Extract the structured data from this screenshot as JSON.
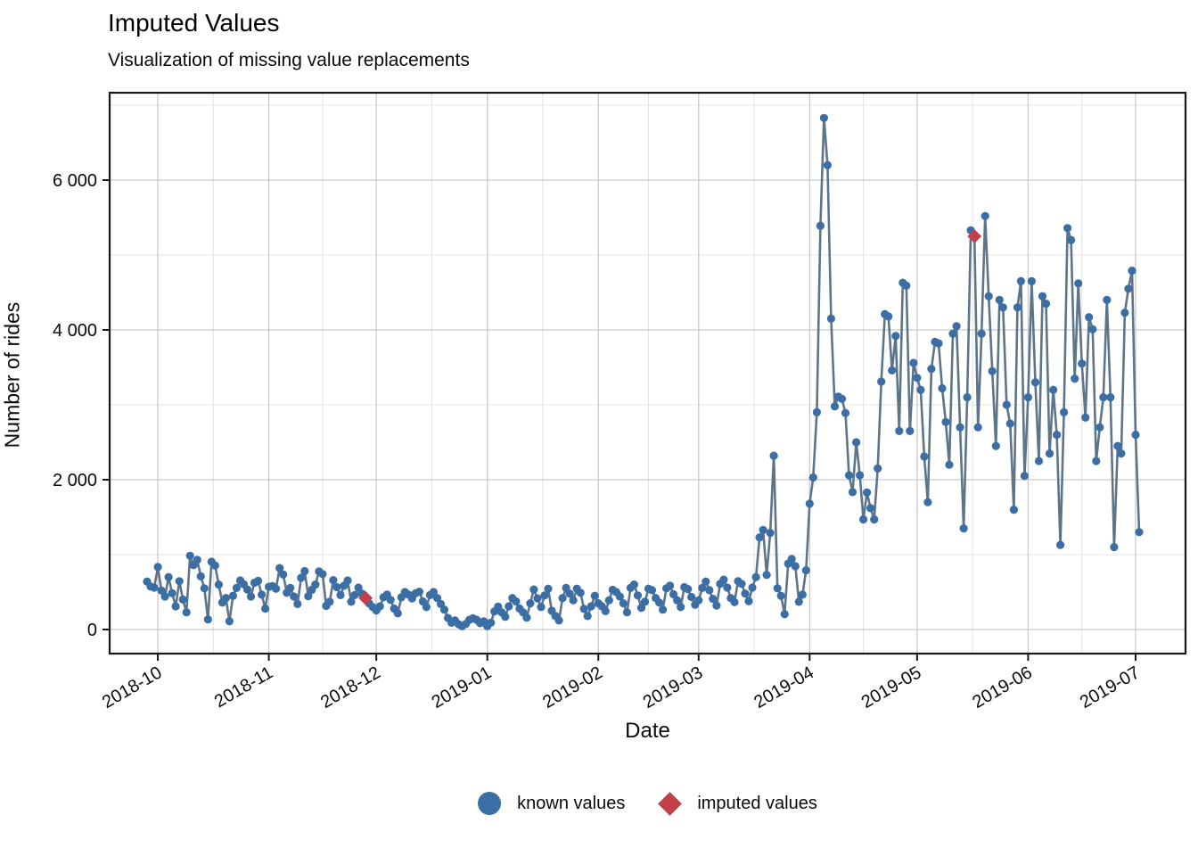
{
  "header": {
    "title": "Imputed Values",
    "subtitle": "Visualization of missing value replacements"
  },
  "chart_data": {
    "type": "line",
    "title": "Imputed Values",
    "subtitle": "Visualization of missing value replacements",
    "xlabel": "Date",
    "ylabel": "Number of rides",
    "grid": true,
    "legend_position": "bottom",
    "x_ticks": [
      {
        "label": "2018-10",
        "day_index": 3
      },
      {
        "label": "2018-11",
        "day_index": 34
      },
      {
        "label": "2018-12",
        "day_index": 64
      },
      {
        "label": "2019-01",
        "day_index": 95
      },
      {
        "label": "2019-02",
        "day_index": 126
      },
      {
        "label": "2019-03",
        "day_index": 154
      },
      {
        "label": "2019-04",
        "day_index": 185
      },
      {
        "label": "2019-05",
        "day_index": 215
      },
      {
        "label": "2019-06",
        "day_index": 246
      },
      {
        "label": "2019-07",
        "day_index": 276
      }
    ],
    "x_minor_day_indices": [
      18.5,
      49,
      79.5,
      110.5,
      140,
      169.5,
      200,
      230.5,
      261
    ],
    "y_major_ticks": [
      {
        "value": 0,
        "label": "0"
      },
      {
        "value": 2000,
        "label": "2 000"
      },
      {
        "value": 4000,
        "label": "4 000"
      },
      {
        "value": 6000,
        "label": "6 000"
      }
    ],
    "y_minor_ticks": [
      1000,
      3000,
      5000,
      7000
    ],
    "ylim": [
      -340,
      7160
    ],
    "start_date": "2018-09-28",
    "end_date": "2019-07-02",
    "values": [
      640,
      575,
      560,
      835,
      520,
      440,
      700,
      485,
      310,
      645,
      400,
      230,
      985,
      860,
      930,
      710,
      550,
      135,
      905,
      855,
      600,
      360,
      420,
      110,
      450,
      555,
      655,
      605,
      535,
      440,
      625,
      650,
      465,
      280,
      570,
      580,
      545,
      820,
      735,
      490,
      555,
      440,
      340,
      690,
      780,
      445,
      530,
      600,
      775,
      740,
      315,
      370,
      660,
      565,
      460,
      585,
      655,
      370,
      460,
      560,
      480,
      420,
      350,
      300,
      255,
      310,
      430,
      465,
      395,
      280,
      215,
      430,
      500,
      465,
      415,
      485,
      505,
      375,
      300,
      460,
      500,
      420,
      340,
      265,
      155,
      90,
      120,
      70,
      45,
      75,
      130,
      150,
      130,
      85,
      110,
      45,
      90,
      240,
      305,
      230,
      170,
      310,
      420,
      375,
      280,
      230,
      160,
      350,
      535,
      415,
      300,
      455,
      545,
      250,
      180,
      120,
      420,
      555,
      480,
      390,
      545,
      490,
      275,
      180,
      310,
      450,
      350,
      310,
      245,
      390,
      530,
      500,
      440,
      350,
      230,
      555,
      600,
      455,
      290,
      370,
      545,
      525,
      420,
      360,
      265,
      550,
      585,
      470,
      390,
      300,
      565,
      540,
      435,
      330,
      390,
      555,
      640,
      525,
      410,
      320,
      610,
      665,
      560,
      420,
      365,
      645,
      610,
      480,
      380,
      560,
      700,
      1230,
      1330,
      730,
      1290,
      2320,
      550,
      450,
      205,
      880,
      940,
      845,
      370,
      465,
      790,
      1680,
      2030,
      2900,
      5390,
      6830,
      6200,
      4150,
      2980,
      3110,
      3080,
      2890,
      2060,
      1835,
      2500,
      2060,
      1470,
      1830,
      1620,
      1470,
      2150,
      3310,
      4210,
      4180,
      3460,
      3920,
      2650,
      4630,
      4590,
      2650,
      3560,
      3360,
      3200,
      2310,
      1700,
      3480,
      3840,
      3820,
      3220,
      2770,
      2200,
      3950,
      4050,
      2700,
      1350,
      3100,
      5330,
      5250,
      2700,
      3950,
      5520,
      4450,
      3450,
      2450,
      4400,
      4300,
      3000,
      2750,
      1600,
      4300,
      4650,
      2050,
      3100,
      4650,
      3300,
      2250,
      4450,
      4350,
      2350,
      3200,
      2600,
      1130,
      2900,
      5360,
      5200,
      3350,
      4620,
      3550,
      2830,
      4170,
      4010,
      2250,
      2700,
      3100,
      4400,
      3100,
      1100,
      2450,
      2350,
      4230,
      4550,
      4790,
      2600,
      1300
    ],
    "imputed_points": [
      {
        "date": "2018-11-28",
        "index": 61,
        "value": 420
      },
      {
        "date": "2019-05-17",
        "index": 231,
        "value": 5250
      }
    ],
    "legend": [
      {
        "label": "known values",
        "marker": "circle",
        "color": "#3A6EA5"
      },
      {
        "label": "imputed values",
        "marker": "diamond",
        "color": "#C2404A"
      }
    ],
    "colors": {
      "line": "#5E7488",
      "known_point": "#3A6EA5",
      "imputed_point": "#C2404A",
      "grid_major": "#C9C9C9",
      "grid_minor": "#E4E4E4",
      "axis": "#171717"
    }
  }
}
